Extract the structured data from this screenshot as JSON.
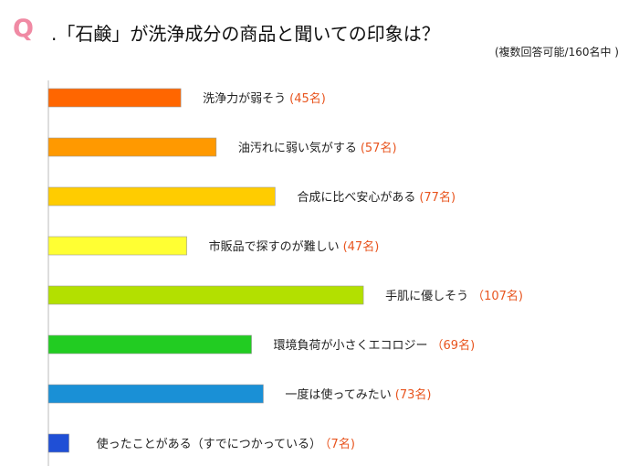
{
  "header": {
    "q_mark": "Q",
    "title": ".「石鹸」が洗浄成分の商品と聞いての印象は？",
    "subtitle": "(複数回答可能/160名中 )"
  },
  "chart_data": {
    "type": "bar",
    "orientation": "horizontal",
    "title": "",
    "xlabel": "",
    "ylabel": "",
    "xlim": [
      0,
      107
    ],
    "grid": false,
    "categories": [
      "洗浄力が弱そう",
      "油汚れに弱い気がする",
      "合成に比べ安心がある",
      "市販品で探すのが難しい",
      "手肌に優しそう",
      "環境負荷が小さくエコロジー",
      "一度は使ってみたい",
      "使ったことがある（すでにつかっている）"
    ],
    "values": [
      45,
      57,
      77,
      47,
      107,
      69,
      73,
      7
    ],
    "count_labels": [
      "(45名)",
      "(57名)",
      "(77名)",
      "(47名)",
      "（107名)",
      "（69名)",
      "(73名)",
      "（7名)"
    ],
    "colors": [
      "#ff6600",
      "#ff9900",
      "#ffcc00",
      "#ffff33",
      "#b3e000",
      "#22cc22",
      "#1a90d6",
      "#1f4fd6"
    ]
  }
}
